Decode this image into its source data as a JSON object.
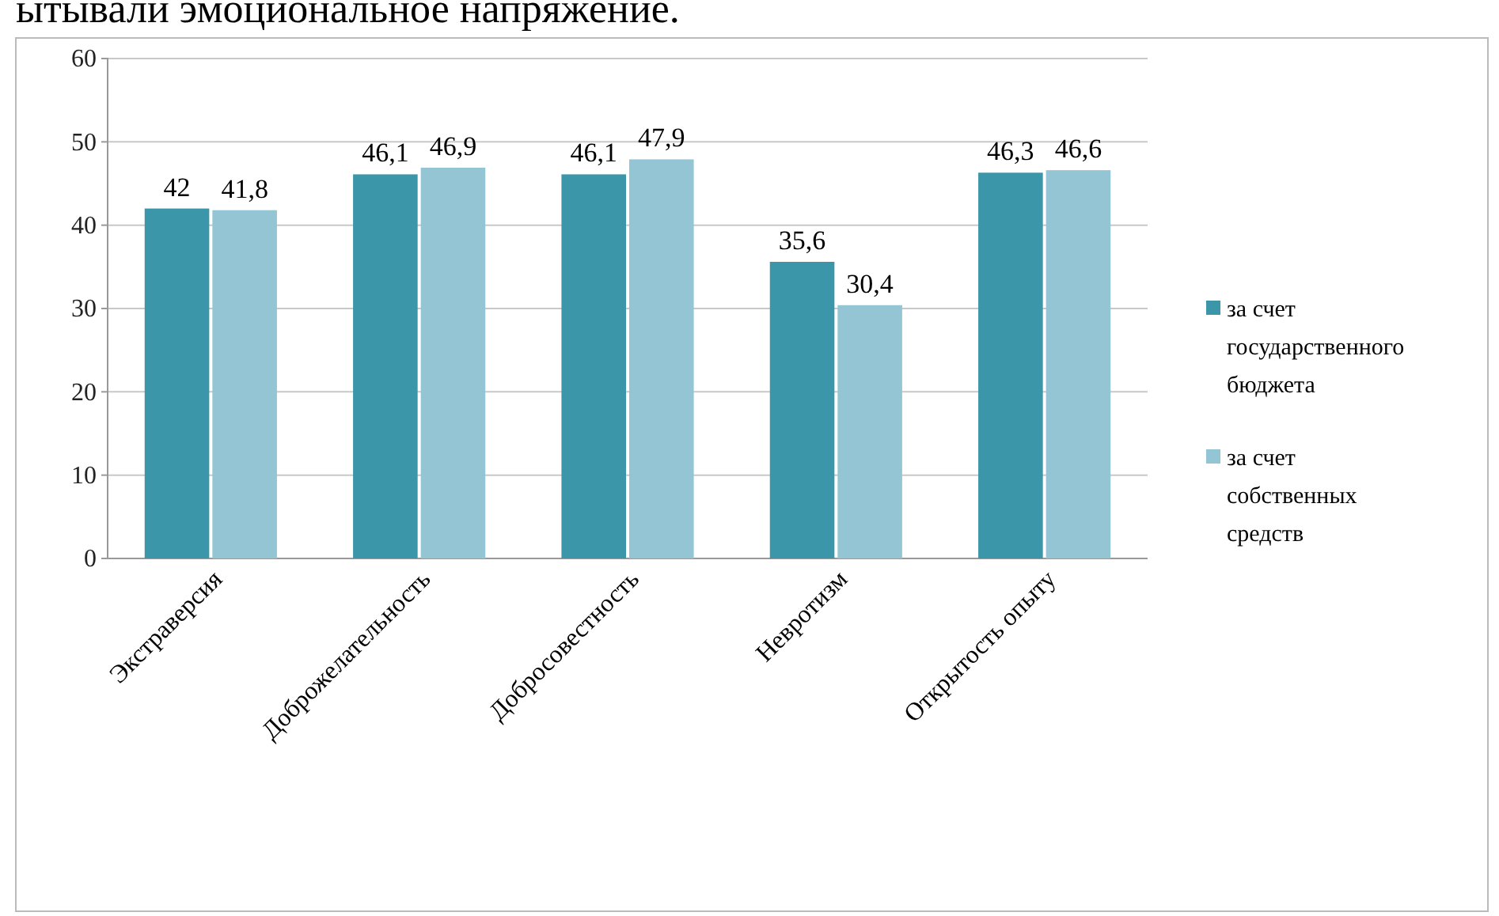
{
  "chart_data": {
    "type": "bar",
    "annotations": [
      "ытывали эмоциональное напряжение."
    ],
    "categories": [
      "Экстраверсия",
      "Доброжелательность",
      "Добросовестность",
      "Невротизм",
      "Открытость опыту"
    ],
    "series": [
      {
        "name": "за счет государственного бюджета",
        "color": "#3a96a8",
        "values": [
          42,
          46.1,
          46.1,
          35.6,
          46.3
        ],
        "value_labels": [
          "42",
          "46,1",
          "46,1",
          "35,6",
          "46,3"
        ]
      },
      {
        "name": "за счет собственных средств",
        "color": "#93c5d5",
        "values": [
          41.8,
          46.9,
          47.9,
          30.4,
          46.6
        ],
        "value_labels": [
          "41,8",
          "46,9",
          "47,9",
          "30,4",
          "46,6"
        ]
      }
    ],
    "ylim": [
      0,
      60
    ],
    "yticks": [
      0,
      10,
      20,
      30,
      40,
      50,
      60
    ],
    "grid": "y",
    "legend": "right"
  }
}
